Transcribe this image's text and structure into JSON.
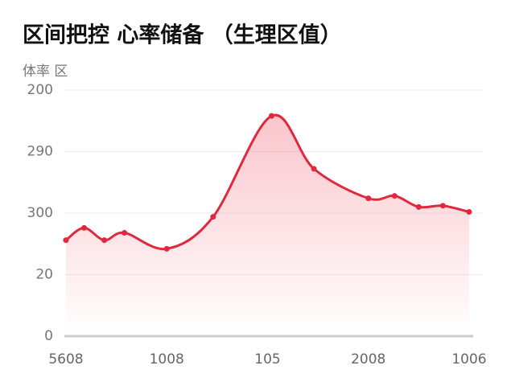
{
  "chart_data": {
    "type": "line",
    "title": "区间把控 心率储备 （生理区值）",
    "y_label": "体率   区",
    "series": [
      {
        "color": "#e0283e",
        "x": [
          0,
          0.9,
          1.9,
          2.9,
          5,
          7.3,
          10.2,
          12.3,
          15,
          16.3,
          17.5,
          18.7,
          20
        ],
        "values": [
          78,
          88,
          78,
          84,
          71,
          97,
          179,
          136,
          112,
          114,
          105,
          106,
          101
        ]
      }
    ],
    "xlim": [
      0,
      20
    ],
    "xticks": [
      {
        "value": 0,
        "label": "5608"
      },
      {
        "value": 5,
        "label": "1008"
      },
      {
        "value": 10,
        "label": "105"
      },
      {
        "value": 15,
        "label": "2008"
      },
      {
        "value": 20,
        "label": "1006"
      }
    ],
    "ylim": [
      0,
      200
    ],
    "yticks": [
      0,
      {
        "value": 50,
        "label": "20"
      },
      {
        "value": 100,
        "label": "300"
      },
      {
        "value": 150,
        "label": "290"
      },
      200
    ],
    "grid": true
  }
}
